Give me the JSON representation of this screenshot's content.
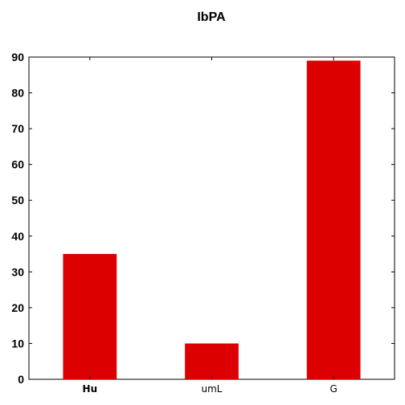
{
  "chart_data": {
    "type": "bar",
    "title": "IbPA",
    "xlabel": "",
    "ylabel": "",
    "categories": [
      "Hu",
      "umL",
      "G"
    ],
    "values": [
      35,
      10,
      89
    ],
    "ylim": [
      0,
      90
    ],
    "yticks": [
      0,
      10,
      20,
      30,
      40,
      50,
      60,
      70,
      80,
      90
    ],
    "bar_color": "#dd0000",
    "grid": false,
    "legend": "none"
  }
}
